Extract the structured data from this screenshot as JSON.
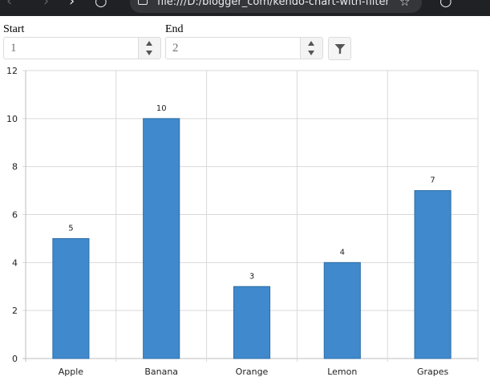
{
  "browser": {
    "back_icon": "arrow-left-icon",
    "forward_icon": "arrow-right-icon",
    "reload_icon": "reload-icon",
    "address": "file:///D:/blogger_com/kendo-chart-with-filter/ke",
    "bookmark_icon": "star-icon"
  },
  "filter": {
    "start_label": "Start",
    "start_value": "1",
    "end_label": "End",
    "end_value": "2",
    "filter_icon": "filter-icon"
  },
  "chart_data": {
    "type": "bar",
    "categories": [
      "Apple",
      "Banana",
      "Orange",
      "Lemon",
      "Grapes"
    ],
    "values": [
      5,
      10,
      3,
      4,
      7
    ],
    "ylim": [
      0,
      12
    ],
    "yticks": [
      "0",
      "2",
      "4",
      "6",
      "8",
      "10",
      "12"
    ],
    "grid": true,
    "bar_color": "#4089cc",
    "bar_border_color": "#2f6ea6"
  }
}
